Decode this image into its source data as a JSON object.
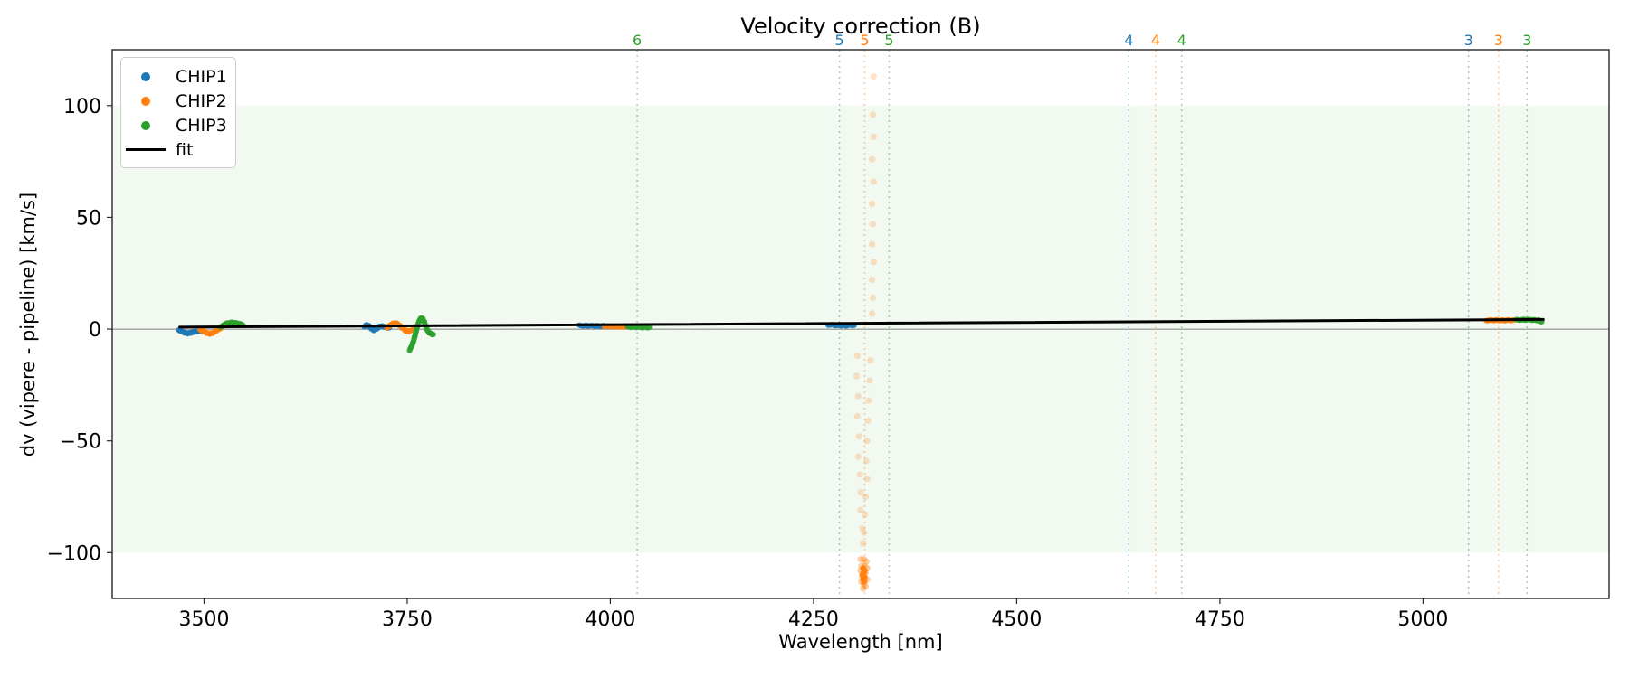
{
  "chart_data": {
    "type": "scatter",
    "title": "Velocity correction (B)",
    "xlabel": "Wavelength [nm]",
    "ylabel": "dv (vipere - pipeline) [km/s]",
    "xlim": [
      3387,
      5229
    ],
    "ylim": [
      -120.5,
      125
    ],
    "x_ticks": [
      3500,
      3750,
      4000,
      4250,
      4500,
      4750,
      5000
    ],
    "y_ticks": [
      100,
      50,
      0,
      -50,
      -100
    ],
    "grid": false,
    "band": {
      "ymin": -100,
      "ymax": 100,
      "color": "#2ca02c",
      "opacity": 0.065
    },
    "zero_line": {
      "y": 0,
      "color": "#7f7f7f"
    },
    "fit": {
      "label": "fit",
      "color": "#000000",
      "x": [
        3470,
        5148
      ],
      "y": [
        0.9,
        4.3
      ]
    },
    "series": [
      {
        "name": "CHIP1",
        "color": "#1f77b4",
        "segments": [
          [
            [
              3469,
              -0.4
            ],
            [
              3472,
              -0.9
            ],
            [
              3476,
              -1.6
            ],
            [
              3480,
              -1.9
            ],
            [
              3484,
              -1.6
            ],
            [
              3488,
              -1.2
            ],
            [
              3492,
              -1.0
            ],
            [
              3497,
              -0.8
            ]
          ],
          [
            [
              3697,
              1.2
            ],
            [
              3700,
              1.8
            ],
            [
              3703,
              1.4
            ],
            [
              3706,
              0.2
            ],
            [
              3709,
              -0.5
            ],
            [
              3712,
              0.0
            ],
            [
              3715,
              0.9
            ],
            [
              3718,
              1.4
            ],
            [
              3721,
              1.1
            ],
            [
              3724,
              0.8
            ],
            [
              3728,
              0.6
            ]
          ],
          [
            [
              3962,
              1.6
            ],
            [
              3972,
              1.5
            ],
            [
              3982,
              1.4
            ],
            [
              3993,
              1.4
            ]
          ],
          [
            [
              4268,
              1.9
            ],
            [
              4278,
              1.7
            ],
            [
              4290,
              1.6
            ],
            [
              4300,
              1.8
            ]
          ]
        ]
      },
      {
        "name": "CHIP2",
        "color": "#ff7f0e",
        "segments": [
          [
            [
              3495,
              -0.4
            ],
            [
              3499,
              -0.8
            ],
            [
              3503,
              -1.7
            ],
            [
              3507,
              -2.1
            ],
            [
              3511,
              -1.7
            ],
            [
              3515,
              -0.8
            ],
            [
              3519,
              0.2
            ],
            [
              3522,
              0.6
            ]
          ],
          [
            [
              3725,
              0.5
            ],
            [
              3728,
              1.4
            ],
            [
              3732,
              2.4
            ],
            [
              3736,
              2.7
            ],
            [
              3740,
              1.8
            ],
            [
              3744,
              0.5
            ],
            [
              3748,
              -0.7
            ],
            [
              3752,
              -1.0
            ],
            [
              3757,
              -0.4
            ]
          ],
          [
            [
              3993,
              1.3
            ],
            [
              4003,
              1.2
            ],
            [
              4013,
              1.1
            ],
            [
              4021,
              1.1
            ]
          ],
          [
            [
              5078,
              3.9
            ],
            [
              5090,
              4.0
            ],
            [
              5100,
              3.9
            ],
            [
              5111,
              4.0
            ]
          ]
        ],
        "outliers": {
          "faint": [
            [
              4324,
              113
            ],
            [
              4323,
              96
            ],
            [
              4324,
              86
            ],
            [
              4322,
              76
            ],
            [
              4324,
              66
            ],
            [
              4322,
              56
            ],
            [
              4323,
              47
            ],
            [
              4322,
              38
            ],
            [
              4324,
              30
            ],
            [
              4322,
              22
            ],
            [
              4323,
              14
            ],
            [
              4322,
              7
            ],
            [
              4304,
              -12
            ],
            [
              4320,
              -14
            ],
            [
              4303,
              -21
            ],
            [
              4319,
              -23
            ],
            [
              4305,
              -30
            ],
            [
              4318,
              -32
            ],
            [
              4304,
              -39
            ],
            [
              4317,
              -41
            ],
            [
              4306,
              -48
            ],
            [
              4316,
              -50
            ],
            [
              4305,
              -57
            ],
            [
              4315,
              -59
            ],
            [
              4307,
              -65
            ],
            [
              4316,
              -67
            ],
            [
              4308,
              -73
            ],
            [
              4314,
              -75
            ],
            [
              4308,
              -81
            ],
            [
              4313,
              -83
            ],
            [
              4310,
              -89
            ],
            [
              4312,
              -91
            ],
            [
              4311,
              -96
            ]
          ],
          "cluster": [
            [
              4308,
              -103
            ],
            [
              4312,
              -103
            ],
            [
              4315,
              -104
            ],
            [
              4309,
              -106
            ],
            [
              4313,
              -106
            ],
            [
              4316,
              -107
            ],
            [
              4308,
              -108
            ],
            [
              4311,
              -109
            ],
            [
              4314,
              -109
            ],
            [
              4310,
              -111
            ],
            [
              4313,
              -112
            ],
            [
              4316,
              -112
            ],
            [
              4309,
              -113
            ],
            [
              4312,
              -114
            ],
            [
              4314,
              -115
            ],
            [
              4311,
              -116
            ]
          ],
          "core": [
            [
              4311,
              -107
            ],
            [
              4313,
              -108
            ],
            [
              4312,
              -109
            ],
            [
              4310,
              -110
            ],
            [
              4313,
              -111
            ],
            [
              4311,
              -112
            ],
            [
              4312,
              -113
            ]
          ]
        }
      },
      {
        "name": "CHIP3",
        "color": "#2ca02c",
        "segments": [
          [
            [
              3520,
              0.8
            ],
            [
              3524,
              1.7
            ],
            [
              3528,
              2.5
            ],
            [
              3533,
              2.9
            ],
            [
              3538,
              2.8
            ],
            [
              3543,
              2.4
            ],
            [
              3548,
              1.8
            ]
          ],
          [
            [
              3753,
              -9.5
            ],
            [
              3756,
              -7.2
            ],
            [
              3759,
              -3.8
            ],
            [
              3761,
              -0.8
            ],
            [
              3763,
              1.8
            ],
            [
              3765,
              3.8
            ],
            [
              3767,
              4.9
            ],
            [
              3769,
              4.6
            ],
            [
              3771,
              3.2
            ],
            [
              3773,
              1.2
            ],
            [
              3775,
              -0.6
            ],
            [
              3777,
              -1.6
            ],
            [
              3780,
              -2.2
            ],
            [
              3782,
              -2.4
            ]
          ],
          [
            [
              4021,
              1.0
            ],
            [
              4031,
              0.9
            ],
            [
              4040,
              0.8
            ],
            [
              4048,
              0.8
            ]
          ],
          [
            [
              5115,
              4.1
            ],
            [
              5125,
              4.2
            ],
            [
              5135,
              4.1
            ],
            [
              5142,
              3.9
            ],
            [
              5146,
              3.4
            ]
          ]
        ]
      }
    ],
    "vlines": [
      {
        "x": 4033,
        "label": "6",
        "color": "#2ca02c"
      },
      {
        "x": 4282,
        "label": "5",
        "color": "#1f77b4"
      },
      {
        "x": 4313,
        "label": "5",
        "color": "#ff7f0e"
      },
      {
        "x": 4343,
        "label": "5",
        "color": "#2ca02c"
      },
      {
        "x": 4638,
        "label": "4",
        "color": "#1f77b4"
      },
      {
        "x": 4671,
        "label": "4",
        "color": "#ff7f0e"
      },
      {
        "x": 4703,
        "label": "4",
        "color": "#2ca02c"
      },
      {
        "x": 5056,
        "label": "3",
        "color": "#1f77b4"
      },
      {
        "x": 5093,
        "label": "3",
        "color": "#ff7f0e"
      },
      {
        "x": 5128,
        "label": "3",
        "color": "#2ca02c"
      }
    ],
    "legend": [
      {
        "label": "CHIP1",
        "color": "#1f77b4",
        "marker": "dot"
      },
      {
        "label": "CHIP2",
        "color": "#ff7f0e",
        "marker": "dot"
      },
      {
        "label": "CHIP3",
        "color": "#2ca02c",
        "marker": "dot"
      },
      {
        "label": "fit",
        "color": "#000000",
        "marker": "line"
      }
    ],
    "legend_position": "upper left"
  }
}
